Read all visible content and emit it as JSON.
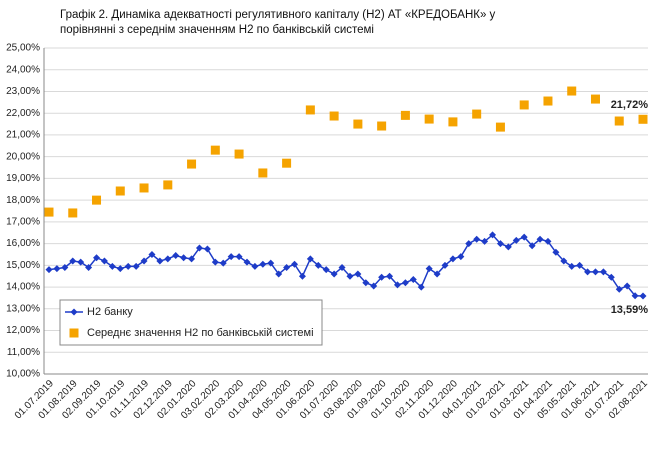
{
  "chart_data": {
    "type": "line",
    "title": "Графік 2. Динаміка адекватності регулятивного капіталу (Н2) АТ «КРЕДОБАНК» у порівнянні з середнім значенням Н2 по банківській системі",
    "categories": [
      "01.07.2019",
      null,
      null,
      "01.08.2019",
      null,
      null,
      "02.09.2019",
      null,
      null,
      "01.10.2019",
      null,
      null,
      "01.11.2019",
      null,
      null,
      "02.12.2019",
      null,
      null,
      "02.01.2020",
      null,
      null,
      "03.02.2020",
      null,
      null,
      "02.03.2020",
      null,
      null,
      "01.04.2020",
      null,
      null,
      "04.05.2020",
      null,
      null,
      "01.06.2020",
      null,
      null,
      "01.07.2020",
      null,
      null,
      "03.08.2020",
      null,
      null,
      "01.09.2020",
      null,
      null,
      "01.10.2020",
      null,
      null,
      "02.11.2020",
      null,
      null,
      "01.12.2020",
      null,
      null,
      "04.01.2021",
      null,
      null,
      "01.02.2021",
      null,
      null,
      "01.03.2021",
      null,
      null,
      "01.04.2021",
      null,
      null,
      "05.05.2021",
      null,
      null,
      "01.06.2021",
      null,
      null,
      "01.07.2021",
      null,
      null,
      "02.08.2021"
    ],
    "series": [
      {
        "name": "Н2 банку",
        "color": "#1e3cc8",
        "marker": "diamond",
        "line": true,
        "values": [
          14.8,
          14.85,
          14.9,
          15.2,
          15.15,
          14.9,
          15.35,
          15.2,
          14.95,
          14.85,
          14.95,
          14.95,
          15.2,
          15.5,
          15.2,
          15.3,
          15.45,
          15.35,
          15.3,
          15.8,
          15.75,
          15.15,
          15.1,
          15.4,
          15.4,
          15.15,
          14.95,
          15.05,
          15.1,
          14.6,
          14.9,
          15.05,
          14.5,
          15.3,
          15.0,
          14.8,
          14.6,
          14.9,
          14.5,
          14.6,
          14.2,
          14.05,
          14.45,
          14.5,
          14.1,
          14.2,
          14.35,
          14.0,
          14.85,
          14.6,
          15.0,
          15.3,
          15.4,
          16.0,
          16.2,
          16.1,
          16.4,
          16.0,
          15.85,
          16.15,
          16.3,
          15.9,
          16.2,
          16.1,
          15.6,
          15.2,
          14.95,
          15.0,
          14.7,
          14.7,
          14.7,
          14.45,
          13.9,
          14.05,
          13.6,
          13.59
        ],
        "value_labels": [
          null,
          null,
          null,
          null,
          null,
          null,
          null,
          null,
          null,
          null,
          null,
          null,
          null,
          null,
          null,
          null,
          null,
          null,
          null,
          null,
          null,
          null,
          null,
          null,
          null,
          null,
          null,
          null,
          null,
          null,
          null,
          null,
          null,
          null,
          null,
          null,
          null,
          null,
          null,
          null,
          null,
          null,
          null,
          null,
          null,
          null,
          null,
          null,
          null,
          null,
          null,
          null,
          null,
          null,
          null,
          null,
          null,
          null,
          null,
          null,
          null,
          null,
          null,
          null,
          null,
          null,
          null,
          null,
          null,
          null,
          null,
          null,
          null,
          null,
          null,
          "13,59%"
        ],
        "label_color": "#1f4e79"
      },
      {
        "name": "Середнє значення Н2 по банківській системі",
        "color": "#f5a300",
        "marker": "square",
        "line": false,
        "values": [
          17.45,
          null,
          null,
          17.41,
          null,
          null,
          18.0,
          null,
          null,
          18.42,
          null,
          null,
          18.56,
          null,
          null,
          18.7,
          null,
          null,
          19.66,
          null,
          null,
          20.3,
          null,
          null,
          20.12,
          null,
          null,
          19.25,
          null,
          null,
          19.7,
          null,
          null,
          22.15,
          null,
          null,
          21.87,
          null,
          null,
          21.5,
          null,
          null,
          21.41,
          null,
          null,
          21.9,
          null,
          null,
          21.73,
          null,
          null,
          21.6,
          null,
          null,
          21.96,
          null,
          null,
          21.36,
          null,
          null,
          22.38,
          null,
          null,
          22.56,
          null,
          null,
          23.02,
          null,
          null,
          22.65,
          null,
          null,
          21.64,
          null,
          null,
          21.72
        ],
        "value_labels": [
          null,
          null,
          null,
          null,
          null,
          null,
          null,
          null,
          null,
          null,
          null,
          null,
          null,
          null,
          null,
          null,
          null,
          null,
          null,
          null,
          null,
          null,
          null,
          null,
          null,
          null,
          null,
          null,
          null,
          null,
          null,
          null,
          null,
          null,
          null,
          null,
          null,
          null,
          null,
          null,
          null,
          null,
          null,
          null,
          null,
          null,
          null,
          null,
          null,
          null,
          null,
          null,
          null,
          null,
          null,
          null,
          null,
          null,
          null,
          null,
          null,
          null,
          null,
          null,
          null,
          null,
          null,
          null,
          null,
          null,
          null,
          null,
          null,
          null,
          null,
          "21,72%"
        ],
        "label_color": "#9c5a1e"
      }
    ],
    "ylim": [
      10,
      25
    ],
    "yticks": [
      {
        "value": 10,
        "label": "10,00%"
      },
      {
        "value": 11,
        "label": "11,00%"
      },
      {
        "value": 12,
        "label": "12,00%"
      },
      {
        "value": 13,
        "label": "13,00%"
      },
      {
        "value": 14,
        "label": "14,00%"
      },
      {
        "value": 15,
        "label": "15,00%"
      },
      {
        "value": 16,
        "label": "16,00%"
      },
      {
        "value": 17,
        "label": "17,00%"
      },
      {
        "value": 18,
        "label": "18,00%"
      },
      {
        "value": 19,
        "label": "19,00%"
      },
      {
        "value": 20,
        "label": "20,00%"
      },
      {
        "value": 21,
        "label": "21,00%"
      },
      {
        "value": 22,
        "label": "22,00%"
      },
      {
        "value": 23,
        "label": "23,00%"
      },
      {
        "value": 24,
        "label": "24,00%"
      },
      {
        "value": 25,
        "label": "25,00%"
      }
    ],
    "grid": true,
    "legend": "lower-left"
  }
}
